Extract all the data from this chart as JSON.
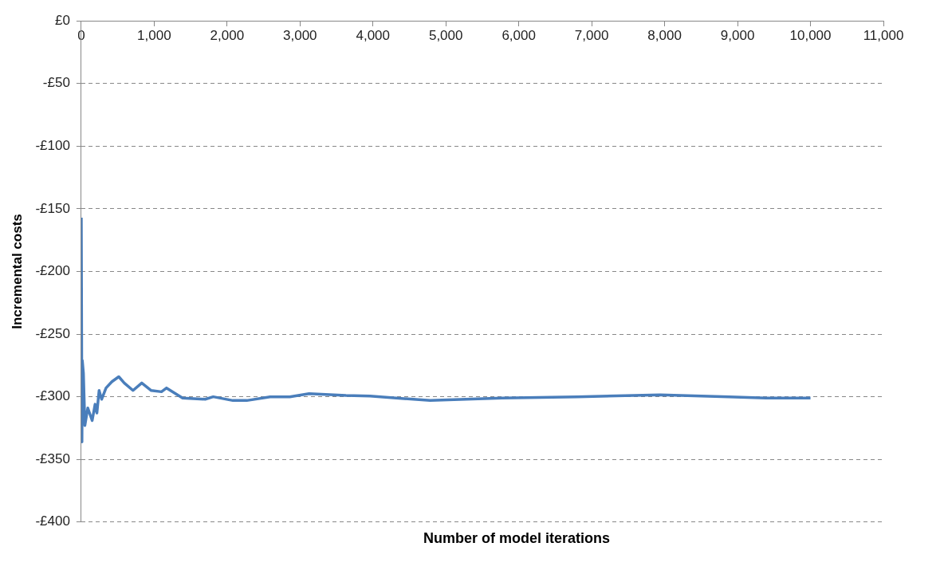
{
  "chart_data": {
    "type": "line",
    "xlabel": "Number of model iterations",
    "ylabel": "Incremental costs",
    "series": [
      {
        "color": "#4a7ebb",
        "x": [
          1,
          10,
          15,
          30,
          50,
          90,
          150,
          190,
          215,
          245,
          280,
          340,
          420,
          515,
          590,
          710,
          830,
          960,
          1100,
          1170,
          1390,
          1700,
          1810,
          2080,
          2270,
          2590,
          2860,
          3124,
          3630,
          3960,
          4785,
          5770,
          6800,
          7940,
          8880,
          9390,
          10000
        ],
        "values": [
          -157,
          -336,
          -271,
          -281,
          -323,
          -309,
          -319,
          -306,
          -313,
          -295,
          -302,
          -293,
          -288,
          -284,
          -289,
          -295,
          -289,
          -295,
          -296,
          -293,
          -301,
          -302,
          -300,
          -303,
          -303,
          -300,
          -300,
          -297.5,
          -299,
          -299.5,
          -303,
          -301,
          -300,
          -298.5,
          -300,
          -301,
          -301
        ]
      }
    ],
    "xlim": [
      0,
      11000
    ],
    "xticks": [
      0,
      {
        "value": 1000,
        "label": "1,000"
      },
      {
        "value": 2000,
        "label": "2,000"
      },
      {
        "value": 3000,
        "label": "3,000"
      },
      {
        "value": 4000,
        "label": "4,000"
      },
      {
        "value": 5000,
        "label": "5,000"
      },
      {
        "value": 6000,
        "label": "6,000"
      },
      {
        "value": 7000,
        "label": "7,000"
      },
      {
        "value": 8000,
        "label": "8,000"
      },
      {
        "value": 9000,
        "label": "9,000"
      },
      {
        "value": 10000,
        "label": "10,000"
      },
      {
        "value": 11000,
        "label": "11,000"
      }
    ],
    "ylim": [
      -400,
      0
    ],
    "yticks": [
      {
        "value": -400,
        "label": "-£400"
      },
      {
        "value": -350,
        "label": "-£350"
      },
      {
        "value": -300,
        "label": "-£300"
      },
      {
        "value": -250,
        "label": "-£250"
      },
      {
        "value": -200,
        "label": "-£200"
      },
      {
        "value": -150,
        "label": "-£150"
      },
      {
        "value": -100,
        "label": "-£100"
      },
      {
        "value": -50,
        "label": "-£50"
      },
      {
        "value": 0,
        "label": "£0"
      }
    ],
    "grid": "y",
    "legend": false,
    "marker": "none",
    "line_style": "solid"
  }
}
